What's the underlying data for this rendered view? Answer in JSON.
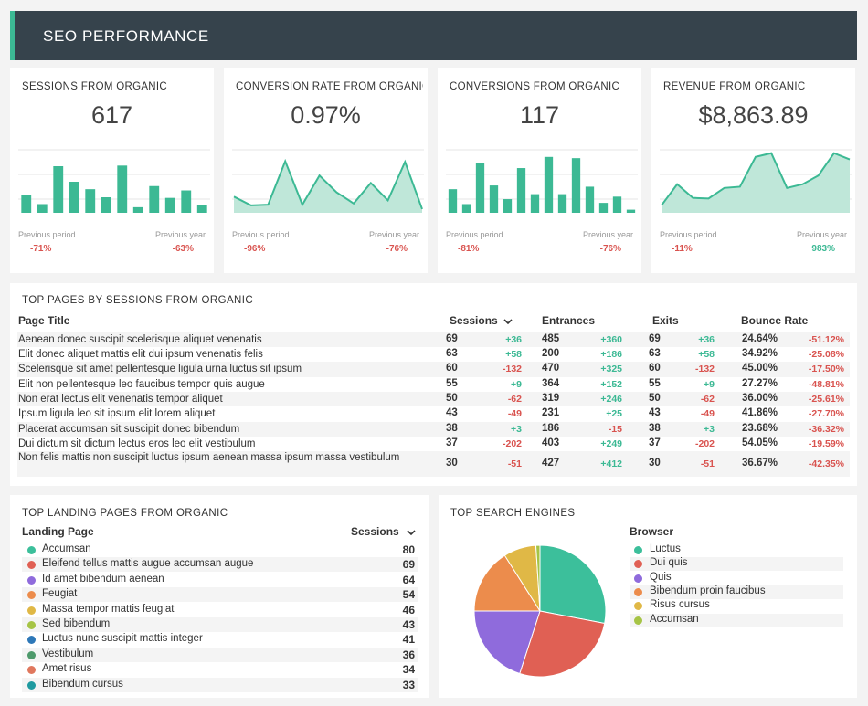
{
  "header": {
    "title": "SEO PERFORMANCE"
  },
  "kpis": [
    {
      "label": "SESSIONS FROM ORGANIC",
      "value": "617",
      "prev_label": "Previous period",
      "prev_value": "-71%",
      "year_label": "Previous year",
      "year_value": "-63%",
      "chart_type": "bar",
      "series": [
        28,
        14,
        75,
        50,
        38,
        25,
        76,
        9,
        43,
        24,
        36,
        13
      ]
    },
    {
      "label": "CONVERSION RATE FROM ORGANIC",
      "value": "0.97%",
      "prev_label": "Previous period",
      "prev_value": "-96%",
      "year_label": "Previous year",
      "year_value": "-76%",
      "chart_type": "area",
      "series": [
        26,
        12,
        13,
        83,
        13,
        60,
        33,
        15,
        48,
        20,
        82,
        6
      ]
    },
    {
      "label": "CONVERSIONS FROM ORGANIC",
      "value": "117",
      "prev_label": "Previous period",
      "prev_value": "-81%",
      "year_label": "Previous year",
      "year_value": "-76%",
      "chart_type": "bar",
      "series": [
        38,
        14,
        80,
        44,
        22,
        72,
        30,
        90,
        30,
        88,
        42,
        16,
        26,
        5
      ]
    },
    {
      "label": "REVENUE FROM ORGANIC",
      "value": "$8,863.89",
      "prev_label": "Previous period",
      "prev_value": "-11%",
      "year_label": "Previous year",
      "year_value": "983%",
      "chart_type": "area",
      "series": [
        12,
        46,
        24,
        23,
        40,
        42,
        90,
        96,
        40,
        46,
        60,
        96,
        86
      ]
    }
  ],
  "top_pages": {
    "title": "TOP PAGES BY SESSIONS FROM ORGANIC",
    "columns": {
      "page_title": "Page Title",
      "sessions": "Sessions",
      "entrances": "Entrances",
      "exits": "Exits",
      "bounce_rate": "Bounce Rate"
    },
    "rows": [
      {
        "title": "Aenean donec suscipit scelerisque aliquet venenatis",
        "sessions": "69",
        "sessions_delta": "+36",
        "entrances": "485",
        "entrances_delta": "+360",
        "exits": "69",
        "exits_delta": "+36",
        "bounce": "24.64%",
        "bounce_delta": "-51.12%"
      },
      {
        "title": "Elit donec aliquet mattis elit dui ipsum venenatis felis",
        "sessions": "63",
        "sessions_delta": "+58",
        "entrances": "200",
        "entrances_delta": "+186",
        "exits": "63",
        "exits_delta": "+58",
        "bounce": "34.92%",
        "bounce_delta": "-25.08%"
      },
      {
        "title": "Scelerisque sit amet pellentesque ligula urna luctus sit ipsum",
        "sessions": "60",
        "sessions_delta": "-132",
        "entrances": "470",
        "entrances_delta": "+325",
        "exits": "60",
        "exits_delta": "-132",
        "bounce": "45.00%",
        "bounce_delta": "-17.50%"
      },
      {
        "title": "Elit non pellentesque leo faucibus tempor quis augue",
        "sessions": "55",
        "sessions_delta": "+9",
        "entrances": "364",
        "entrances_delta": "+152",
        "exits": "55",
        "exits_delta": "+9",
        "bounce": "27.27%",
        "bounce_delta": "-48.81%"
      },
      {
        "title": "Non erat lectus elit venenatis tempor aliquet",
        "sessions": "50",
        "sessions_delta": "-62",
        "entrances": "319",
        "entrances_delta": "+246",
        "exits": "50",
        "exits_delta": "-62",
        "bounce": "36.00%",
        "bounce_delta": "-25.61%"
      },
      {
        "title": "Ipsum ligula leo sit ipsum elit lorem aliquet",
        "sessions": "43",
        "sessions_delta": "-49",
        "entrances": "231",
        "entrances_delta": "+25",
        "exits": "43",
        "exits_delta": "-49",
        "bounce": "41.86%",
        "bounce_delta": "-27.70%"
      },
      {
        "title": "Placerat accumsan sit suscipit donec bibendum",
        "sessions": "38",
        "sessions_delta": "+3",
        "entrances": "186",
        "entrances_delta": "-15",
        "exits": "38",
        "exits_delta": "+3",
        "bounce": "23.68%",
        "bounce_delta": "-36.32%"
      },
      {
        "title": "Dui dictum sit dictum lectus eros leo elit vestibulum",
        "sessions": "37",
        "sessions_delta": "-202",
        "entrances": "403",
        "entrances_delta": "+249",
        "exits": "37",
        "exits_delta": "-202",
        "bounce": "54.05%",
        "bounce_delta": "-19.59%"
      },
      {
        "title": "Non felis mattis non suscipit luctus ipsum aenean massa ipsum massa vestibulum",
        "sessions": "30",
        "sessions_delta": "-51",
        "entrances": "427",
        "entrances_delta": "+412",
        "exits": "30",
        "exits_delta": "-51",
        "bounce": "36.67%",
        "bounce_delta": "-42.35%"
      }
    ]
  },
  "landing": {
    "title": "TOP LANDING PAGES FROM ORGANIC",
    "col_page": "Landing Page",
    "col_sessions": "Sessions",
    "rows": [
      {
        "name": "Accumsan",
        "value": "80",
        "color": "#3cbf9b"
      },
      {
        "name": "Eleifend tellus mattis augue accumsan augue",
        "value": "69",
        "color": "#e06054"
      },
      {
        "name": "Id amet bibendum aenean",
        "value": "64",
        "color": "#8f6bdc"
      },
      {
        "name": "Feugiat",
        "value": "54",
        "color": "#ec8c4c"
      },
      {
        "name": "Massa tempor mattis feugiat",
        "value": "46",
        "color": "#e0b846"
      },
      {
        "name": "Sed bibendum",
        "value": "43",
        "color": "#a6c446"
      },
      {
        "name": "Luctus nunc suscipit mattis integer",
        "value": "41",
        "color": "#2e78b8"
      },
      {
        "name": "Vestibulum",
        "value": "36",
        "color": "#4e9a6c"
      },
      {
        "name": "Amet risus",
        "value": "34",
        "color": "#e0785e"
      },
      {
        "name": "Bibendum cursus",
        "value": "33",
        "color": "#1f9aa0"
      }
    ]
  },
  "engines": {
    "title": "TOP SEARCH ENGINES",
    "legend_title": "Browser",
    "chart_data": {
      "type": "pie",
      "slices": [
        {
          "name": "Luctus",
          "value": 28,
          "color": "#3cbf9b"
        },
        {
          "name": "Dui quis",
          "value": 27,
          "color": "#e06054"
        },
        {
          "name": "Quis",
          "value": 20,
          "color": "#8f6bdc"
        },
        {
          "name": "Bibendum proin faucibus",
          "value": 16,
          "color": "#ec8c4c"
        },
        {
          "name": "Risus cursus",
          "value": 8,
          "color": "#e0b846"
        },
        {
          "name": "Accumsan",
          "value": 1,
          "color": "#a6c446"
        }
      ]
    }
  }
}
